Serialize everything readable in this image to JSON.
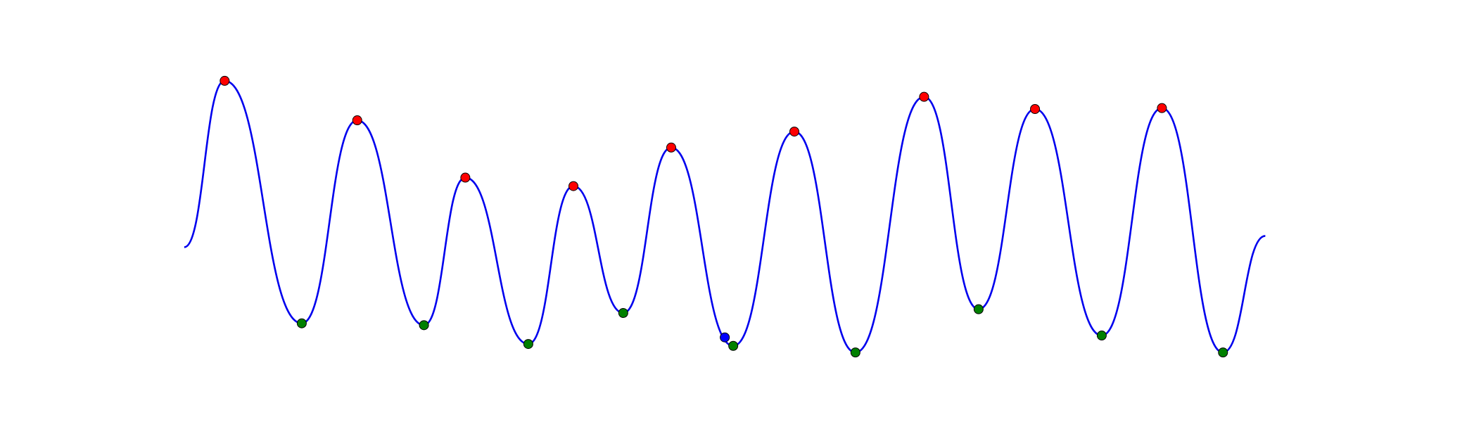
{
  "chart_data": {
    "type": "line",
    "xlim": [
      0,
      1568
    ],
    "ylim": [
      0,
      449
    ],
    "series": [
      {
        "mark": "line",
        "color": "#0000ee",
        "x": [
          196,
          239,
          321,
          380,
          451,
          495,
          562,
          610,
          663,
          714,
          780,
          845,
          910,
          983,
          1041,
          1101,
          1172,
          1236,
          1301,
          1346
        ],
        "values": [
          186,
          363,
          105,
          321,
          103,
          260,
          83,
          251,
          116,
          292,
          81,
          309,
          74,
          346,
          120,
          333,
          92,
          334,
          74,
          198
        ]
      },
      {
        "mark": "dot",
        "color": "#ff0000",
        "x": [
          239,
          380,
          495,
          610,
          714,
          845,
          983,
          1101,
          1236
        ],
        "values": [
          363,
          321,
          260,
          251,
          292,
          309,
          346,
          333,
          334
        ]
      },
      {
        "mark": "dot",
        "color": "#008000",
        "x": [
          321,
          451,
          562,
          663,
          780,
          910,
          1041,
          1172,
          1301
        ],
        "values": [
          105,
          103,
          83,
          116,
          81,
          74,
          120,
          92,
          74
        ]
      },
      {
        "mark": "dot",
        "color": "#0000ff",
        "x": [
          771
        ],
        "values": [
          90
        ]
      }
    ]
  }
}
